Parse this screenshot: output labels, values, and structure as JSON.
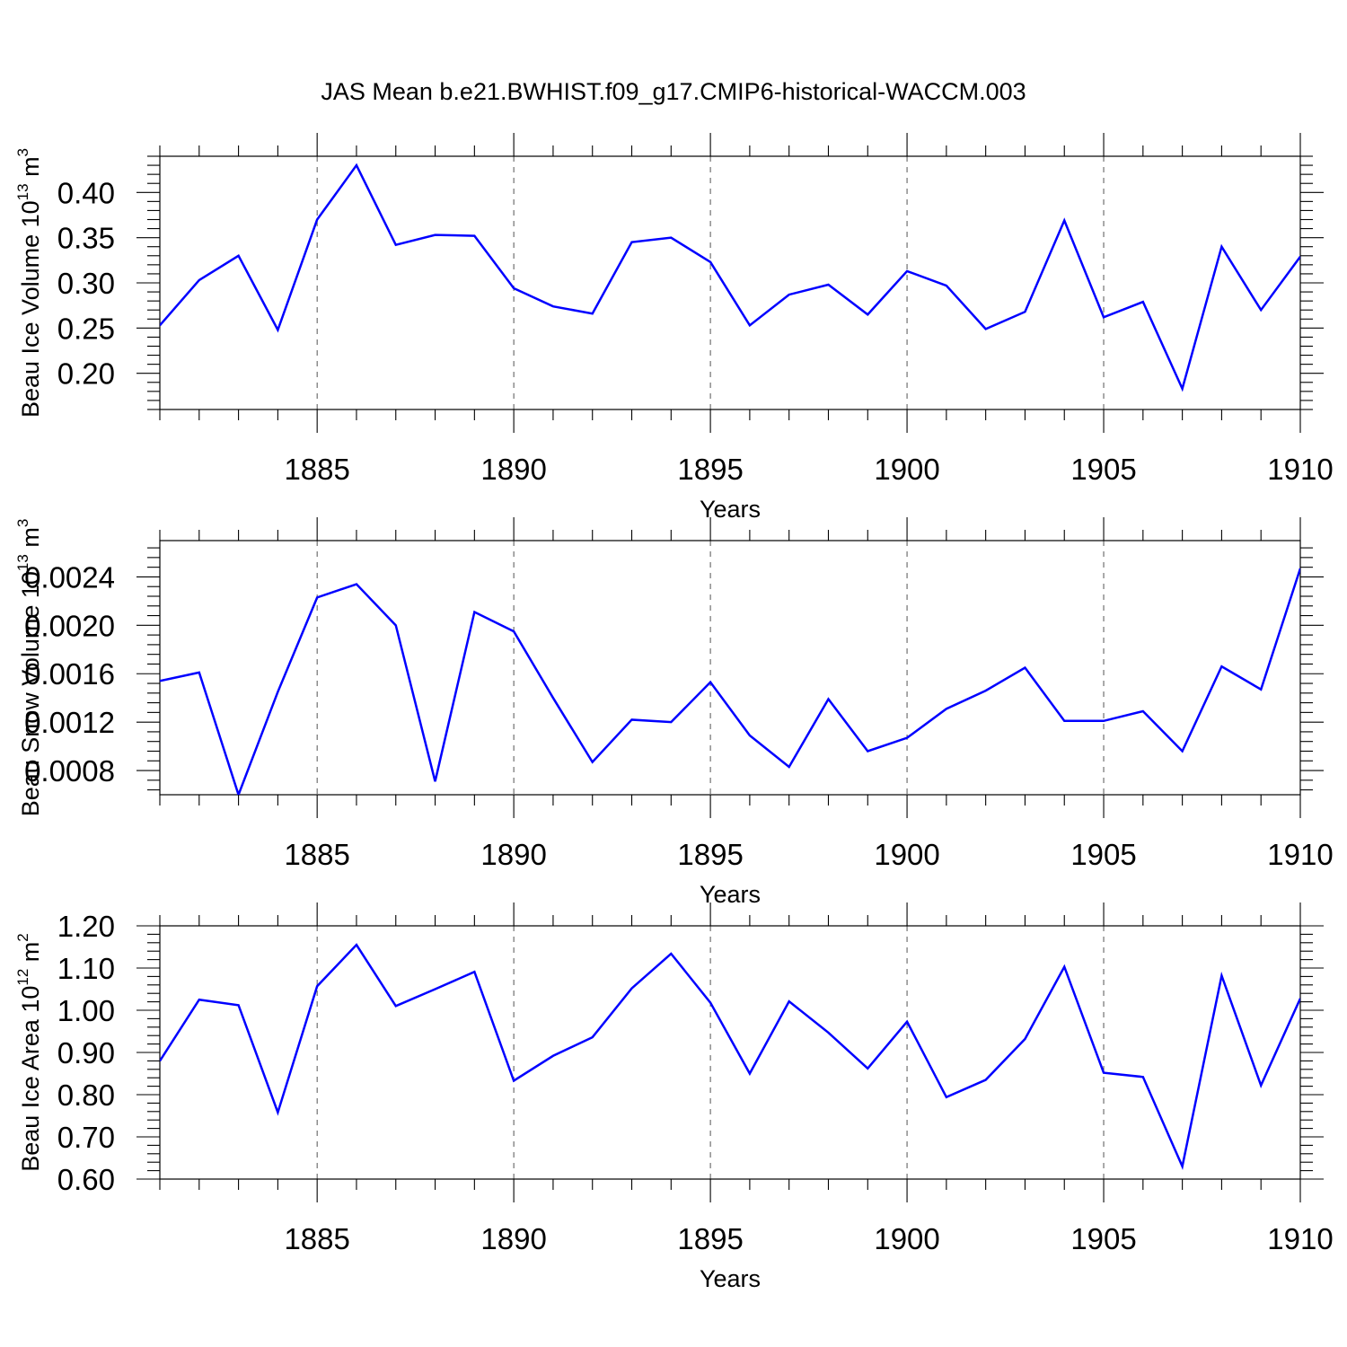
{
  "title": "JAS Mean b.e21.BWHIST.f09_g17.CMIP6-historical-WACCM.003",
  "colors": {
    "line": "#0000ff",
    "frame": "#000000",
    "grid": "#555555"
  },
  "chart_data": [
    {
      "type": "line",
      "xlabel": "Years",
      "ylabel_text": "Beau Ice Volume 10",
      "ylabel_exp": "13",
      "ylabel_unit": " m",
      "ylabel_unit_exp": "3",
      "xlim": [
        1881,
        1910
      ],
      "ylim": [
        0.16,
        0.44
      ],
      "xticks": [
        1885,
        1890,
        1895,
        1900,
        1905,
        1910
      ],
      "yticks": [
        0.2,
        0.25,
        0.3,
        0.35,
        0.4
      ],
      "ytick_labels": [
        "0.20",
        "0.25",
        "0.30",
        "0.35",
        "0.40"
      ],
      "grid_x": "dashed vertical at major x ticks",
      "x": [
        1881,
        1882,
        1883,
        1884,
        1885,
        1886,
        1887,
        1888,
        1889,
        1890,
        1891,
        1892,
        1893,
        1894,
        1895,
        1896,
        1897,
        1898,
        1899,
        1900,
        1901,
        1902,
        1903,
        1904,
        1905,
        1906,
        1907,
        1908,
        1909,
        1910
      ],
      "values": [
        0.253,
        0.303,
        0.33,
        0.248,
        0.37,
        0.43,
        0.342,
        0.353,
        0.352,
        0.294,
        0.274,
        0.266,
        0.345,
        0.35,
        0.323,
        0.253,
        0.287,
        0.298,
        0.265,
        0.313,
        0.297,
        0.249,
        0.268,
        0.369,
        0.262,
        0.279,
        0.183,
        0.34,
        0.27,
        0.329
      ]
    },
    {
      "type": "line",
      "xlabel": "Years",
      "ylabel_text": "Beau Snow Volume 10",
      "ylabel_exp": "13",
      "ylabel_unit": " m",
      "ylabel_unit_exp": "3",
      "xlim": [
        1881,
        1910
      ],
      "ylim": [
        0.0006,
        0.0027
      ],
      "xticks": [
        1885,
        1890,
        1895,
        1900,
        1905,
        1910
      ],
      "yticks": [
        0.0008,
        0.0012,
        0.0016,
        0.002,
        0.0024
      ],
      "ytick_labels": [
        "0.0008",
        "0.0012",
        "0.0016",
        "0.0020",
        "0.0024"
      ],
      "grid_x": "dashed vertical at major x ticks",
      "x": [
        1881,
        1882,
        1883,
        1884,
        1885,
        1886,
        1887,
        1888,
        1889,
        1890,
        1891,
        1892,
        1893,
        1894,
        1895,
        1896,
        1897,
        1898,
        1899,
        1900,
        1901,
        1902,
        1903,
        1904,
        1905,
        1906,
        1907,
        1908,
        1909,
        1910
      ],
      "values": [
        0.00154,
        0.00161,
        0.0006,
        0.00145,
        0.00223,
        0.00234,
        0.002,
        0.00071,
        0.00211,
        0.00195,
        0.0014,
        0.00087,
        0.00122,
        0.0012,
        0.00153,
        0.00109,
        0.00083,
        0.00139,
        0.00096,
        0.00107,
        0.00131,
        0.00146,
        0.00165,
        0.00121,
        0.00121,
        0.00129,
        0.00096,
        0.00166,
        0.00147,
        0.00247
      ]
    },
    {
      "type": "line",
      "xlabel": "Years",
      "ylabel_text": "Beau Ice Area 10",
      "ylabel_exp": "12",
      "ylabel_unit": " m",
      "ylabel_unit_exp": "2",
      "xlim": [
        1881,
        1910
      ],
      "ylim": [
        0.6,
        1.2
      ],
      "xticks": [
        1885,
        1890,
        1895,
        1900,
        1905,
        1910
      ],
      "yticks": [
        0.6,
        0.7,
        0.8,
        0.9,
        1.0,
        1.1,
        1.2
      ],
      "ytick_labels": [
        "0.60",
        "0.70",
        "0.80",
        "0.90",
        "1.00",
        "1.10",
        "1.20"
      ],
      "grid_x": "dashed vertical at major x ticks",
      "x": [
        1881,
        1882,
        1883,
        1884,
        1885,
        1886,
        1887,
        1888,
        1889,
        1890,
        1891,
        1892,
        1893,
        1894,
        1895,
        1896,
        1897,
        1898,
        1899,
        1900,
        1901,
        1902,
        1903,
        1904,
        1905,
        1906,
        1907,
        1908,
        1909,
        1910
      ],
      "values": [
        0.88,
        1.025,
        1.012,
        0.758,
        1.057,
        1.155,
        1.01,
        1.05,
        1.091,
        0.833,
        0.892,
        0.936,
        1.052,
        1.134,
        1.018,
        0.85,
        1.021,
        0.947,
        0.862,
        0.973,
        0.794,
        0.835,
        0.932,
        1.103,
        0.852,
        0.842,
        0.63,
        1.082,
        0.822,
        1.028
      ]
    }
  ]
}
